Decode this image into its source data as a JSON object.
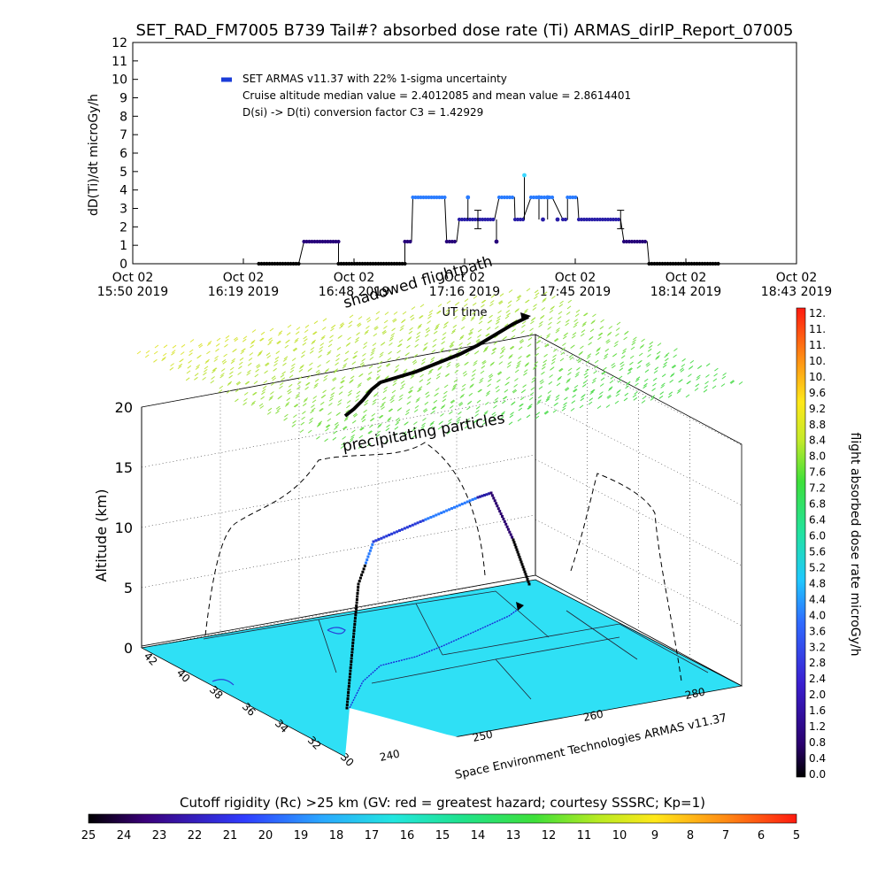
{
  "title": "SET_RAD_FM7005  B739 Tail#? absorbed dose rate (Ti) ARMAS_dirIP_Report_07005",
  "chart_data": [
    {
      "type": "scatter",
      "name": "dose-rate-timeseries",
      "ylabel": "dD(Ti)/dt microGy/h",
      "xlabel": "UT time",
      "ylim": [
        0,
        12
      ],
      "yticks": [
        0,
        1,
        2,
        3,
        4,
        5,
        6,
        7,
        8,
        9,
        10,
        11,
        12
      ],
      "xticks": [
        {
          "line1": "Oct 02",
          "line2": "15:50 2019"
        },
        {
          "line1": "Oct 02",
          "line2": "16:19 2019"
        },
        {
          "line1": "Oct 02",
          "line2": "16:48 2019"
        },
        {
          "line1": "Oct 02",
          "line2": "17:16 2019"
        },
        {
          "line1": "Oct 02",
          "line2": "17:45 2019"
        },
        {
          "line1": "Oct 02",
          "line2": "18:14 2019"
        },
        {
          "line1": "Oct 02",
          "line2": "18:43 2019"
        }
      ],
      "legend": {
        "series": "SET ARMAS v11.37 with 22% 1-sigma uncertainty",
        "median_line": "Cruise altitude median value = 2.4012085 and mean value = 2.8614401",
        "conversion_line": "D(si) -> D(ti) conversion factor C3 = 1.42929",
        "placement": "top-left"
      },
      "annotation_overlap": "shadowed flightpath",
      "segments": [
        {
          "t0": 0.19,
          "t1": 0.25,
          "value": 0.0
        },
        {
          "t0": 0.258,
          "t1": 0.31,
          "value": 1.2
        },
        {
          "t0": 0.31,
          "t1": 0.41,
          "value": 0.0
        },
        {
          "t0": 0.41,
          "t1": 0.42,
          "value": 1.2
        },
        {
          "t0": 0.422,
          "t1": 0.47,
          "value": 3.6
        },
        {
          "t0": 0.473,
          "t1": 0.488,
          "value": 1.2
        },
        {
          "t0": 0.492,
          "t1": 0.52,
          "value": 2.4
        },
        {
          "t0": 0.523,
          "t1": 0.545,
          "value": 2.4
        },
        {
          "t0": 0.552,
          "t1": 0.575,
          "value": 3.6
        },
        {
          "t0": 0.576,
          "t1": 0.588,
          "value": 2.4
        },
        {
          "t0": 0.6,
          "t1": 0.632,
          "value": 3.6
        },
        {
          "t0": 0.648,
          "t1": 0.655,
          "value": 2.4
        },
        {
          "t0": 0.655,
          "t1": 0.67,
          "value": 3.6
        },
        {
          "t0": 0.672,
          "t1": 0.735,
          "value": 2.4
        },
        {
          "t0": 0.74,
          "t1": 0.775,
          "value": 1.2
        },
        {
          "t0": 0.778,
          "t1": 0.885,
          "value": 0.0
        }
      ],
      "spikes": [
        {
          "t": 0.505,
          "value": 3.6
        },
        {
          "t": 0.548,
          "value": 1.2
        },
        {
          "t": 0.59,
          "value": 4.8
        },
        {
          "t": 0.612,
          "value": 3.6
        },
        {
          "t": 0.618,
          "value": 2.4
        },
        {
          "t": 0.625,
          "value": 3.6
        },
        {
          "t": 0.64,
          "value": 2.4
        }
      ],
      "error_bars": [
        {
          "t": 0.52,
          "value": 2.4,
          "err": 0.5
        },
        {
          "t": 0.735,
          "value": 2.4,
          "err": 0.5
        }
      ]
    },
    {
      "type": "scatter",
      "name": "3d-flight-profile",
      "zlabel": "Altitude (km)",
      "zticks": [
        0,
        5,
        10,
        15,
        20
      ],
      "lat_ticks": [
        42,
        40,
        38,
        36,
        34,
        32,
        30
      ],
      "lon_ticks": [
        240,
        250,
        260,
        280
      ],
      "annotations": [
        "shadowed flightpath",
        "precipitating particles"
      ],
      "footer": "Space Environment Technologies ARMAS v11.37",
      "profile": [
        {
          "phase": "climb",
          "alt_km": [
            0,
            1,
            2,
            3,
            4,
            5,
            6,
            7,
            8,
            8.5
          ]
        },
        {
          "phase": "cruise",
          "alt_km": [
            8.5,
            9.5,
            10.5,
            11.5,
            12.3
          ]
        },
        {
          "phase": "descent",
          "alt_km": [
            12.3,
            11,
            9,
            7,
            5,
            4.5
          ]
        }
      ]
    }
  ],
  "dose_colorbar": {
    "label": "flight absorbed dose rate microGy/h",
    "ticks": [
      "12.",
      "11.",
      "11.",
      "10.",
      "10.",
      "9.6",
      "9.2",
      "8.8",
      "8.4",
      "8.0",
      "7.6",
      "7.2",
      "6.8",
      "6.4",
      "6.0",
      "5.6",
      "5.2",
      "4.8",
      "4.4",
      "4.0",
      "3.6",
      "3.2",
      "2.8",
      "2.4",
      "2.0",
      "1.6",
      "1.2",
      "0.8",
      "0.4",
      "0.0"
    ],
    "range": [
      0,
      12
    ]
  },
  "rigidity_colorbar": {
    "label": "Cutoff rigidity (Rc) >25 km (GV: red = greatest hazard; courtesy SSSRC; Kp=1)",
    "ticks": [
      "25",
      "24",
      "23",
      "22",
      "21",
      "20",
      "19",
      "18",
      "17",
      "16",
      "15",
      "14",
      "13",
      "12",
      "11",
      "10",
      "9",
      "8",
      "7",
      "6",
      "5"
    ]
  },
  "colors": {
    "low_dose": "#26007a",
    "mid_dose": "#2a7cff",
    "high_dose": "#3ad7ff",
    "map_fill": "#2fe0f5",
    "zero_dose": "#000000"
  }
}
